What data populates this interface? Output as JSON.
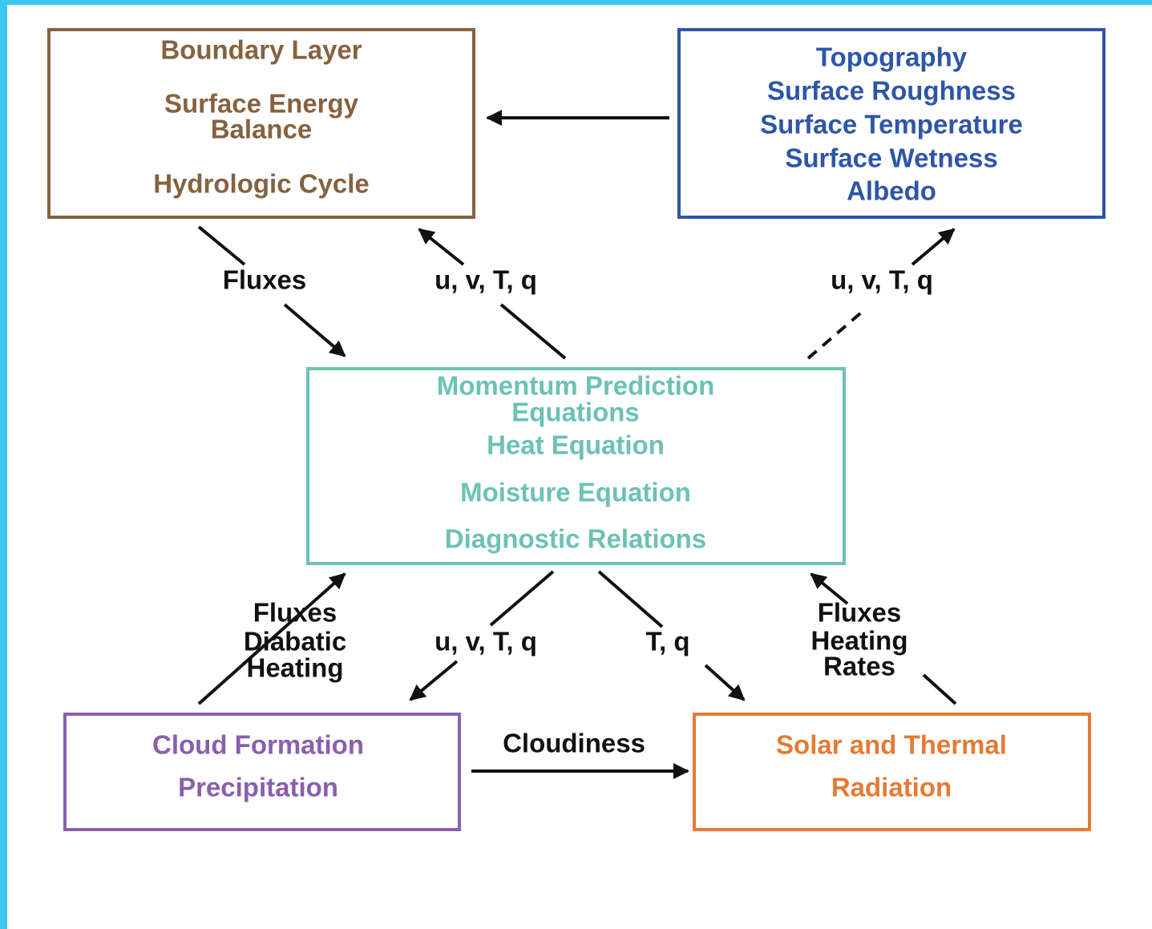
{
  "nodes": [
    {
      "lines": [
        "Boundary Layer",
        "Surface Energy",
        "Balance",
        "Hydrologic Cycle"
      ]
    },
    {
      "lines": [
        "Topography",
        "Surface Roughness",
        "Surface Temperature",
        "Surface Wetness",
        "Albedo"
      ]
    },
    {
      "lines": [
        "Momentum Prediction",
        "Equations",
        "Heat Equation",
        "Moisture Equation",
        "Diagnostic Relations"
      ]
    },
    {
      "lines": [
        "Cloud Formation",
        "Precipitation"
      ]
    },
    {
      "lines": [
        "Solar and Thermal",
        "Radiation"
      ]
    }
  ],
  "edges": [
    {
      "lines": [
        "Fluxes"
      ]
    },
    {
      "lines": [
        "u, v, T, q"
      ]
    },
    {
      "lines": [
        "u, v, T, q"
      ]
    },
    {
      "lines": [
        "Fluxes",
        "Diabatic",
        "Heating"
      ]
    },
    {
      "lines": [
        "u, v, T, q"
      ]
    },
    {
      "lines": [
        "T, q"
      ]
    },
    {
      "lines": [
        "Fluxes",
        "Heating",
        "Rates"
      ]
    },
    {
      "lines": [
        "Cloudiness"
      ]
    }
  ]
}
